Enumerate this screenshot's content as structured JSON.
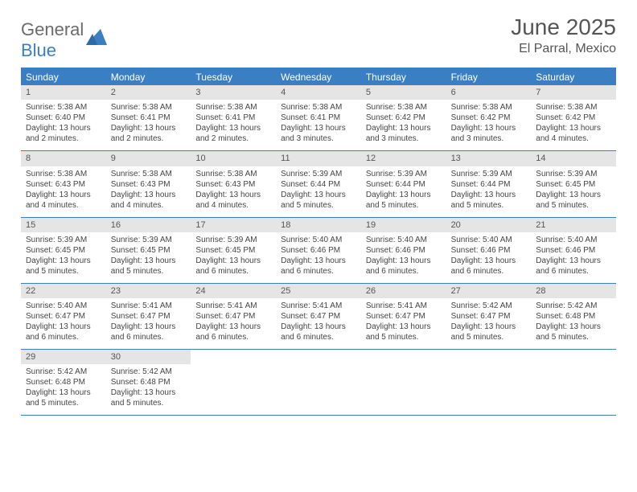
{
  "logo": {
    "general": "General",
    "blue": "Blue"
  },
  "title": "June 2025",
  "location": "El Parral, Mexico",
  "colors": {
    "accent": "#3a7fc4",
    "header_bg": "#3a7fc4",
    "daynum_bg": "#e5e5e5",
    "text": "#444444",
    "title_text": "#555555",
    "logo_gray": "#6b6b6b"
  },
  "day_labels": [
    "Sunday",
    "Monday",
    "Tuesday",
    "Wednesday",
    "Thursday",
    "Friday",
    "Saturday"
  ],
  "weeks": [
    [
      {
        "n": "1",
        "sr": "5:38 AM",
        "ss": "6:40 PM",
        "dl": "13 hours and 2 minutes."
      },
      {
        "n": "2",
        "sr": "5:38 AM",
        "ss": "6:41 PM",
        "dl": "13 hours and 2 minutes."
      },
      {
        "n": "3",
        "sr": "5:38 AM",
        "ss": "6:41 PM",
        "dl": "13 hours and 2 minutes."
      },
      {
        "n": "4",
        "sr": "5:38 AM",
        "ss": "6:41 PM",
        "dl": "13 hours and 3 minutes."
      },
      {
        "n": "5",
        "sr": "5:38 AM",
        "ss": "6:42 PM",
        "dl": "13 hours and 3 minutes."
      },
      {
        "n": "6",
        "sr": "5:38 AM",
        "ss": "6:42 PM",
        "dl": "13 hours and 3 minutes."
      },
      {
        "n": "7",
        "sr": "5:38 AM",
        "ss": "6:42 PM",
        "dl": "13 hours and 4 minutes."
      }
    ],
    [
      {
        "n": "8",
        "sr": "5:38 AM",
        "ss": "6:43 PM",
        "dl": "13 hours and 4 minutes."
      },
      {
        "n": "9",
        "sr": "5:38 AM",
        "ss": "6:43 PM",
        "dl": "13 hours and 4 minutes."
      },
      {
        "n": "10",
        "sr": "5:38 AM",
        "ss": "6:43 PM",
        "dl": "13 hours and 4 minutes."
      },
      {
        "n": "11",
        "sr": "5:39 AM",
        "ss": "6:44 PM",
        "dl": "13 hours and 5 minutes."
      },
      {
        "n": "12",
        "sr": "5:39 AM",
        "ss": "6:44 PM",
        "dl": "13 hours and 5 minutes."
      },
      {
        "n": "13",
        "sr": "5:39 AM",
        "ss": "6:44 PM",
        "dl": "13 hours and 5 minutes."
      },
      {
        "n": "14",
        "sr": "5:39 AM",
        "ss": "6:45 PM",
        "dl": "13 hours and 5 minutes."
      }
    ],
    [
      {
        "n": "15",
        "sr": "5:39 AM",
        "ss": "6:45 PM",
        "dl": "13 hours and 5 minutes."
      },
      {
        "n": "16",
        "sr": "5:39 AM",
        "ss": "6:45 PM",
        "dl": "13 hours and 5 minutes."
      },
      {
        "n": "17",
        "sr": "5:39 AM",
        "ss": "6:45 PM",
        "dl": "13 hours and 6 minutes."
      },
      {
        "n": "18",
        "sr": "5:40 AM",
        "ss": "6:46 PM",
        "dl": "13 hours and 6 minutes."
      },
      {
        "n": "19",
        "sr": "5:40 AM",
        "ss": "6:46 PM",
        "dl": "13 hours and 6 minutes."
      },
      {
        "n": "20",
        "sr": "5:40 AM",
        "ss": "6:46 PM",
        "dl": "13 hours and 6 minutes."
      },
      {
        "n": "21",
        "sr": "5:40 AM",
        "ss": "6:46 PM",
        "dl": "13 hours and 6 minutes."
      }
    ],
    [
      {
        "n": "22",
        "sr": "5:40 AM",
        "ss": "6:47 PM",
        "dl": "13 hours and 6 minutes."
      },
      {
        "n": "23",
        "sr": "5:41 AM",
        "ss": "6:47 PM",
        "dl": "13 hours and 6 minutes."
      },
      {
        "n": "24",
        "sr": "5:41 AM",
        "ss": "6:47 PM",
        "dl": "13 hours and 6 minutes."
      },
      {
        "n": "25",
        "sr": "5:41 AM",
        "ss": "6:47 PM",
        "dl": "13 hours and 6 minutes."
      },
      {
        "n": "26",
        "sr": "5:41 AM",
        "ss": "6:47 PM",
        "dl": "13 hours and 5 minutes."
      },
      {
        "n": "27",
        "sr": "5:42 AM",
        "ss": "6:47 PM",
        "dl": "13 hours and 5 minutes."
      },
      {
        "n": "28",
        "sr": "5:42 AM",
        "ss": "6:48 PM",
        "dl": "13 hours and 5 minutes."
      }
    ],
    [
      {
        "n": "29",
        "sr": "5:42 AM",
        "ss": "6:48 PM",
        "dl": "13 hours and 5 minutes."
      },
      {
        "n": "30",
        "sr": "5:42 AM",
        "ss": "6:48 PM",
        "dl": "13 hours and 5 minutes."
      },
      null,
      null,
      null,
      null,
      null
    ]
  ],
  "labels": {
    "sunrise": "Sunrise:",
    "sunset": "Sunset:",
    "daylight": "Daylight:"
  }
}
